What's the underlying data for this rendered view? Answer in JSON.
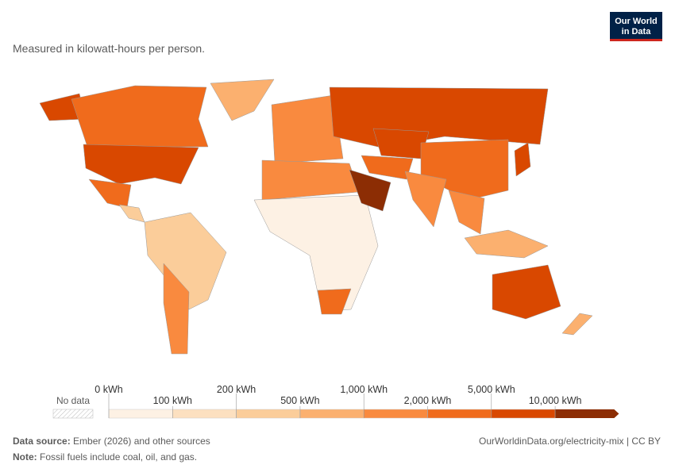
{
  "header": {
    "subtitle": "Measured in kilowatt-hours per person.",
    "logo": [
      "Our World",
      "in Data"
    ]
  },
  "legend": {
    "no_data": "No data",
    "ticks": [
      {
        "value": 0,
        "label": "0 kWh"
      },
      {
        "value": 100,
        "label": "100 kWh"
      },
      {
        "value": 200,
        "label": "200 kWh"
      },
      {
        "value": 500,
        "label": "500 kWh"
      },
      {
        "value": 1000,
        "label": "1,000 kWh"
      },
      {
        "value": 2000,
        "label": "2,000 kWh"
      },
      {
        "value": 5000,
        "label": "5,000 kWh"
      },
      {
        "value": 10000,
        "label": "10,000 kWh"
      }
    ],
    "colors": [
      "#fdf1e4",
      "#fce0c0",
      "#fbcd9a",
      "#fbb06f",
      "#f98a3f",
      "#f06b1c",
      "#d94800",
      "#8c2d04"
    ]
  },
  "footer": {
    "source_label": "Data source:",
    "source": "Ember (2026) and other sources",
    "url": "OurWorldinData.org/electricity-mix | CC BY",
    "note_label": "Note:",
    "note": "Fossil fuels include coal, oil, and gas."
  }
}
